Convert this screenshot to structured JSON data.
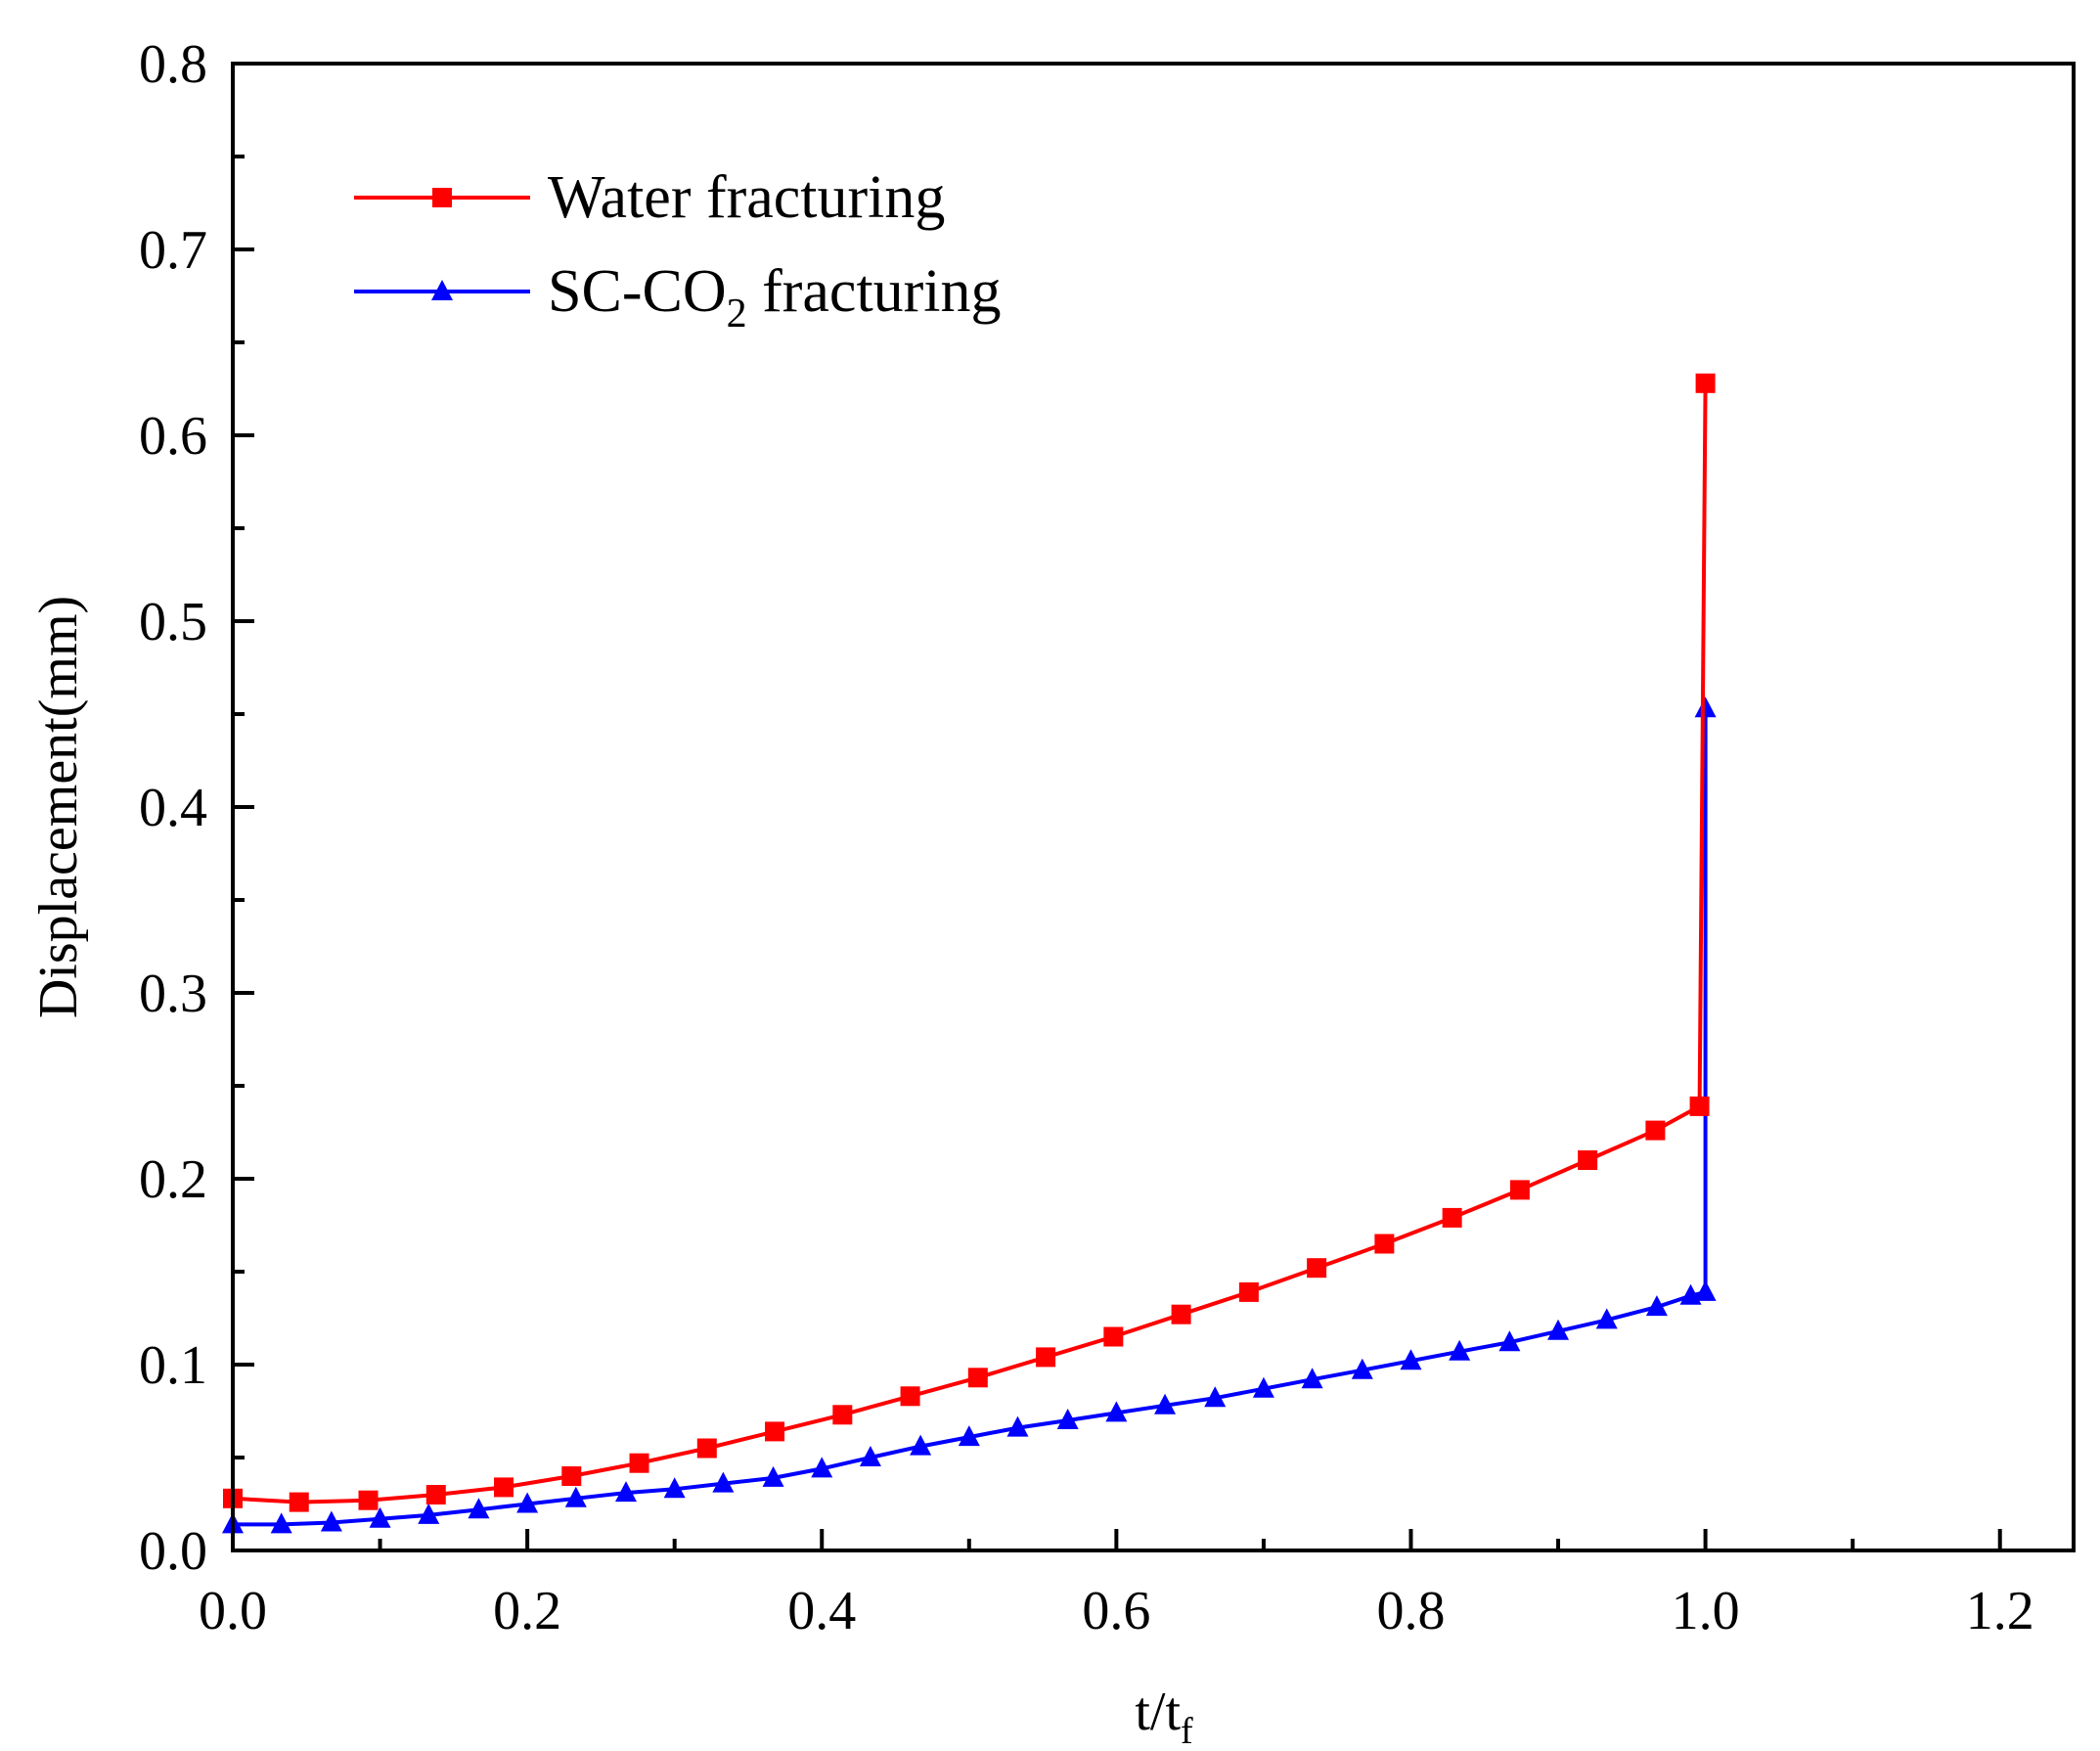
{
  "chart_data": {
    "type": "line",
    "title": "",
    "xlabel": {
      "main": "t/t",
      "sub": "f"
    },
    "ylabel": "Displacement(mm)",
    "xlim": [
      0.0,
      1.25
    ],
    "ylim": [
      0.0,
      0.8
    ],
    "xticks": [
      0.0,
      0.2,
      0.4,
      0.6,
      0.8,
      1.0,
      1.2
    ],
    "xtick_labels": [
      "0.0",
      "0.2",
      "0.4",
      "0.6",
      "0.8",
      "1.0",
      "1.2"
    ],
    "yticks": [
      0.0,
      0.1,
      0.2,
      0.3,
      0.4,
      0.5,
      0.6,
      0.7,
      0.8
    ],
    "ytick_labels": [
      "0.0",
      "0.1",
      "0.2",
      "0.3",
      "0.4",
      "0.5",
      "0.6",
      "0.7",
      "0.8"
    ],
    "legend_position": "top-left",
    "series": [
      {
        "name": "Water fracturing",
        "legend_main": "Water fracturing",
        "color": "#ff0000",
        "marker": "square",
        "x": [
          0.0,
          0.045,
          0.092,
          0.138,
          0.184,
          0.23,
          0.276,
          0.322,
          0.368,
          0.414,
          0.46,
          0.506,
          0.552,
          0.598,
          0.644,
          0.69,
          0.736,
          0.782,
          0.828,
          0.874,
          0.92,
          0.966,
          0.996,
          1.0
        ],
        "y": [
          0.028,
          0.026,
          0.027,
          0.03,
          0.034,
          0.04,
          0.047,
          0.055,
          0.064,
          0.073,
          0.083,
          0.093,
          0.104,
          0.115,
          0.127,
          0.139,
          0.152,
          0.165,
          0.179,
          0.194,
          0.21,
          0.226,
          0.239,
          0.628
        ]
      },
      {
        "name": "SC-CO2 fracturing",
        "legend_main": "SC-CO",
        "legend_sub": "2",
        "legend_tail": " fracturing",
        "color": "#0000ff",
        "marker": "triangle",
        "x": [
          0.0,
          0.033,
          0.067,
          0.1,
          0.133,
          0.167,
          0.2,
          0.233,
          0.267,
          0.3,
          0.333,
          0.367,
          0.4,
          0.433,
          0.467,
          0.5,
          0.533,
          0.567,
          0.6,
          0.633,
          0.667,
          0.7,
          0.733,
          0.767,
          0.8,
          0.833,
          0.867,
          0.9,
          0.933,
          0.967,
          0.99,
          1.0,
          1.0
        ],
        "y": [
          0.014,
          0.014,
          0.015,
          0.017,
          0.019,
          0.022,
          0.025,
          0.028,
          0.031,
          0.033,
          0.036,
          0.039,
          0.044,
          0.05,
          0.056,
          0.061,
          0.066,
          0.07,
          0.074,
          0.078,
          0.082,
          0.087,
          0.092,
          0.097,
          0.102,
          0.107,
          0.112,
          0.118,
          0.124,
          0.131,
          0.137,
          0.139,
          0.453
        ]
      }
    ]
  }
}
